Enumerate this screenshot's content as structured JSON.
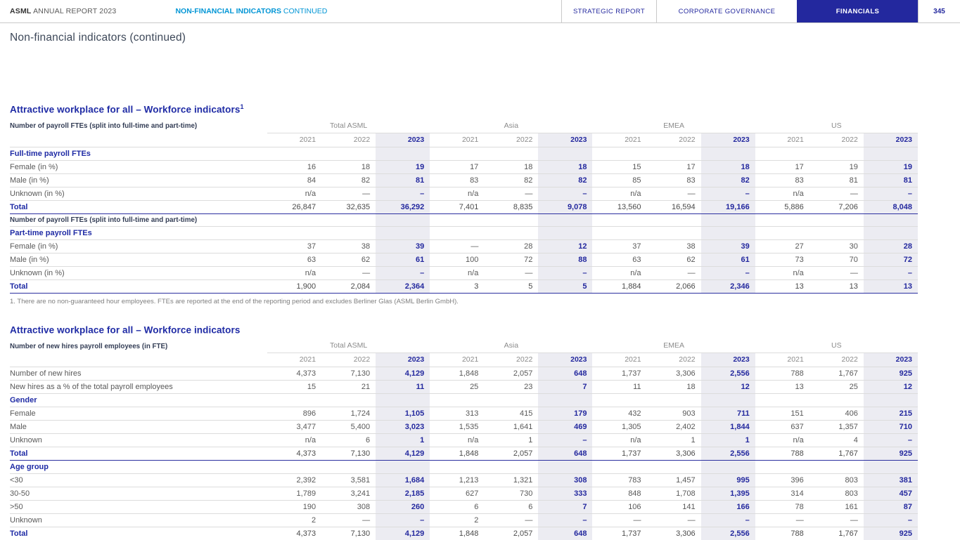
{
  "header": {
    "brand": {
      "bold": "ASML",
      "rest": " ANNUAL REPORT 2023"
    },
    "section": {
      "bold": "NON-FINANCIAL INDICATORS",
      "rest": " CONTINUED"
    },
    "tabs": [
      {
        "label": "STRATEGIC REPORT",
        "active": false
      },
      {
        "label": "CORPORATE GOVERNANCE",
        "active": false
      },
      {
        "label": "FINANCIALS",
        "active": true
      }
    ],
    "page_number": "345"
  },
  "page_title": "Non-financial indicators (continued)",
  "colors": {
    "navy": "#23289e",
    "cyan": "#0095d5",
    "heading_blue": "#1f2ba5",
    "shade_2023": "#ececf2"
  },
  "tables": [
    {
      "title": "Attractive workplace for all – Workforce indicators",
      "title_sup": "1",
      "subtitle": "Number of payroll FTEs (split into full-time and part-time)",
      "groups": [
        "Total ASML",
        "Asia",
        "EMEA",
        "US"
      ],
      "years": [
        "2021",
        "2022",
        "2023"
      ],
      "rows": [
        {
          "type": "section",
          "label": "Full-time payroll FTEs"
        },
        {
          "type": "data",
          "label": "Female (in %)",
          "values": [
            "16",
            "18",
            "19",
            "17",
            "18",
            "18",
            "15",
            "17",
            "18",
            "17",
            "19",
            "19"
          ]
        },
        {
          "type": "data",
          "label": "Male (in %)",
          "values": [
            "84",
            "82",
            "81",
            "83",
            "82",
            "82",
            "85",
            "83",
            "82",
            "83",
            "81",
            "81"
          ]
        },
        {
          "type": "data",
          "label": "Unknown (in %)",
          "values": [
            "n/a",
            "—",
            "–",
            "n/a",
            "—",
            "–",
            "n/a",
            "—",
            "–",
            "n/a",
            "—",
            "–"
          ]
        },
        {
          "type": "total",
          "label": "Total",
          "values": [
            "26,847",
            "32,635",
            "36,292",
            "7,401",
            "8,835",
            "9,078",
            "13,560",
            "16,594",
            "19,166",
            "5,886",
            "7,206",
            "8,048"
          ]
        },
        {
          "type": "subhead",
          "label": "Number of payroll FTEs (split into full-time and part-time)"
        },
        {
          "type": "section",
          "label": "Part-time payroll FTEs"
        },
        {
          "type": "data",
          "label": "Female (in %)",
          "values": [
            "37",
            "38",
            "39",
            "—",
            "28",
            "12",
            "37",
            "38",
            "39",
            "27",
            "30",
            "28"
          ]
        },
        {
          "type": "data",
          "label": "Male (in %)",
          "values": [
            "63",
            "62",
            "61",
            "100",
            "72",
            "88",
            "63",
            "62",
            "61",
            "73",
            "70",
            "72"
          ]
        },
        {
          "type": "data",
          "label": "Unknown (in %)",
          "values": [
            "n/a",
            "—",
            "–",
            "n/a",
            "—",
            "–",
            "n/a",
            "—",
            "–",
            "n/a",
            "—",
            "–"
          ]
        },
        {
          "type": "total",
          "label": "Total",
          "values": [
            "1,900",
            "2,084",
            "2,364",
            "3",
            "5",
            "5",
            "1,884",
            "2,066",
            "2,346",
            "13",
            "13",
            "13"
          ]
        }
      ],
      "footnote": "1. There are no non-guaranteed hour employees. FTEs are reported at the end of the reporting period and excludes Berliner Glas (ASML Berlin GmbH)."
    },
    {
      "title": "Attractive workplace for all – Workforce indicators",
      "subtitle": "Number of new hires payroll employees (in FTE)",
      "groups": [
        "Total ASML",
        "Asia",
        "EMEA",
        "US"
      ],
      "years": [
        "2021",
        "2022",
        "2023"
      ],
      "rows": [
        {
          "type": "data",
          "label": "Number of new hires",
          "values": [
            "4,373",
            "7,130",
            "4,129",
            "1,848",
            "2,057",
            "648",
            "1,737",
            "3,306",
            "2,556",
            "788",
            "1,767",
            "925"
          ]
        },
        {
          "type": "data",
          "label": "New hires as a % of the total payroll employees",
          "values": [
            "15",
            "21",
            "11",
            "25",
            "23",
            "7",
            "11",
            "18",
            "12",
            "13",
            "25",
            "12"
          ]
        },
        {
          "type": "section",
          "label": "Gender"
        },
        {
          "type": "data",
          "label": "Female",
          "values": [
            "896",
            "1,724",
            "1,105",
            "313",
            "415",
            "179",
            "432",
            "903",
            "711",
            "151",
            "406",
            "215"
          ]
        },
        {
          "type": "data",
          "label": "Male",
          "values": [
            "3,477",
            "5,400",
            "3,023",
            "1,535",
            "1,641",
            "469",
            "1,305",
            "2,402",
            "1,844",
            "637",
            "1,357",
            "710"
          ]
        },
        {
          "type": "data",
          "label": "Unknown",
          "values": [
            "n/a",
            "6",
            "1",
            "n/a",
            "1",
            "–",
            "n/a",
            "1",
            "1",
            "n/a",
            "4",
            "–"
          ]
        },
        {
          "type": "total",
          "label": "Total",
          "values": [
            "4,373",
            "7,130",
            "4,129",
            "1,848",
            "2,057",
            "648",
            "1,737",
            "3,306",
            "2,556",
            "788",
            "1,767",
            "925"
          ]
        },
        {
          "type": "section",
          "label": "Age group"
        },
        {
          "type": "data",
          "label": "<30",
          "values": [
            "2,392",
            "3,581",
            "1,684",
            "1,213",
            "1,321",
            "308",
            "783",
            "1,457",
            "995",
            "396",
            "803",
            "381"
          ]
        },
        {
          "type": "data",
          "label": "30-50",
          "values": [
            "1,789",
            "3,241",
            "2,185",
            "627",
            "730",
            "333",
            "848",
            "1,708",
            "1,395",
            "314",
            "803",
            "457"
          ]
        },
        {
          "type": "data",
          "label": ">50",
          "values": [
            "190",
            "308",
            "260",
            "6",
            "6",
            "7",
            "106",
            "141",
            "166",
            "78",
            "161",
            "87"
          ]
        },
        {
          "type": "data",
          "label": "Unknown",
          "values": [
            "2",
            "—",
            "–",
            "2",
            "—",
            "–",
            "—",
            "—",
            "–",
            "—",
            "—",
            "–"
          ]
        },
        {
          "type": "total",
          "label": "Total",
          "values": [
            "4,373",
            "7,130",
            "4,129",
            "1,848",
            "2,057",
            "648",
            "1,737",
            "3,306",
            "2,556",
            "788",
            "1,767",
            "925"
          ]
        }
      ]
    }
  ]
}
